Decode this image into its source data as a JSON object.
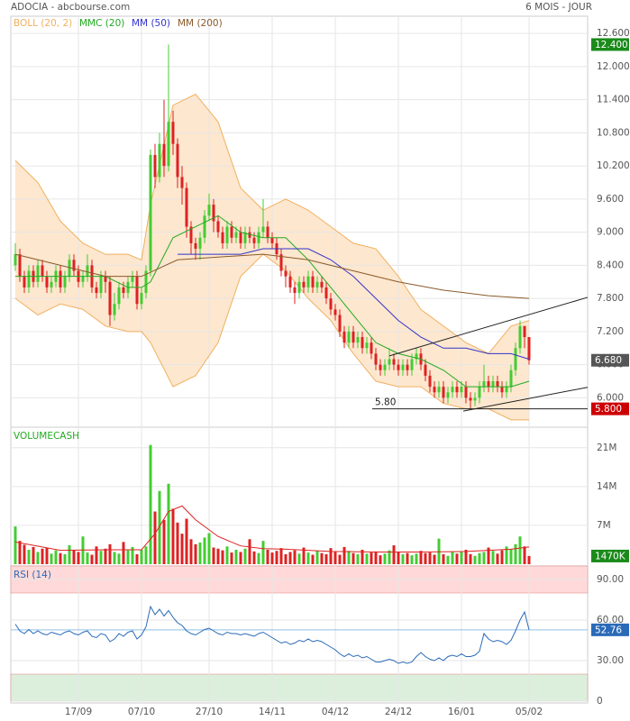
{
  "chart_data": [
    {
      "type": "candlestick",
      "title": "ADOCIA - abcbourse.com",
      "subtitle": "6 MOIS - JOUR",
      "ylim": [
        5.5,
        12.75
      ],
      "yticks": [
        {
          "value": 12.6,
          "label": "12.600"
        },
        {
          "value": 12.0,
          "label": "12.000"
        },
        {
          "value": 11.4,
          "label": "11.400"
        },
        {
          "value": 10.8,
          "label": "10.800"
        },
        {
          "value": 10.2,
          "label": "10.200"
        },
        {
          "value": 9.6,
          "label": "9.600"
        },
        {
          "value": 9.0,
          "label": "9.000"
        },
        {
          "value": 8.4,
          "label": "8.400"
        },
        {
          "value": 7.8,
          "label": "7.800"
        },
        {
          "value": 7.2,
          "label": "7.200"
        },
        {
          "value": 6.6,
          "label": "6.600"
        },
        {
          "value": 6.0,
          "label": "6.000"
        }
      ],
      "up_color": "#44cc33",
      "down_color": "#dd2222",
      "open": [
        8.4,
        8.6,
        8.2,
        8.0,
        8.3,
        8.1,
        8.4,
        8.2,
        8.0,
        8.1,
        8.3,
        8.0,
        8.2,
        8.5,
        8.3,
        8.1,
        8.2,
        8.4,
        8.0,
        7.9,
        8.2,
        8.1,
        7.5,
        7.7,
        8.0,
        7.9,
        8.1,
        8.2,
        7.7,
        7.9,
        8.3,
        10.4,
        10.0,
        10.6,
        10.2,
        11.0,
        10.6,
        10.0,
        9.8,
        9.1,
        8.8,
        8.7,
        8.9,
        9.3,
        9.5,
        9.2,
        9.0,
        8.8,
        9.1,
        8.9,
        9.0,
        8.8,
        9.0,
        8.9,
        8.8,
        9.0,
        9.1,
        8.9,
        8.8,
        8.6,
        8.3,
        8.2,
        8.0,
        7.9,
        8.1,
        8.0,
        8.2,
        8.0,
        8.1,
        8.0,
        7.8,
        7.6,
        7.5,
        7.2,
        7.0,
        7.2,
        7.0,
        7.1,
        6.9,
        7.0,
        6.8,
        6.6,
        6.5,
        6.6,
        6.7,
        6.6,
        6.5,
        6.6,
        6.5,
        6.7,
        6.8,
        6.6,
        6.4,
        6.2,
        6.1,
        6.2,
        6.0,
        6.1,
        6.2,
        6.1,
        6.2,
        6.0,
        5.95,
        6.0,
        6.2,
        6.3,
        6.2,
        6.3,
        6.2,
        6.1,
        6.2,
        6.5,
        6.9,
        7.3,
        7.1
      ],
      "high": [
        8.8,
        8.7,
        8.3,
        8.4,
        8.4,
        8.5,
        8.5,
        8.3,
        8.2,
        8.4,
        8.4,
        8.3,
        8.6,
        8.6,
        8.4,
        8.3,
        8.6,
        8.5,
        8.1,
        8.3,
        8.3,
        8.2,
        7.9,
        8.1,
        8.1,
        8.2,
        8.3,
        8.3,
        8.0,
        8.4,
        10.5,
        10.6,
        10.8,
        11.4,
        12.4,
        11.2,
        10.7,
        10.2,
        9.9,
        9.2,
        8.9,
        9.0,
        9.4,
        9.7,
        9.6,
        9.3,
        9.1,
        9.2,
        9.2,
        9.1,
        9.1,
        9.1,
        9.1,
        9.0,
        9.1,
        9.6,
        9.2,
        9.0,
        8.9,
        8.7,
        8.4,
        8.3,
        8.1,
        8.2,
        8.2,
        8.3,
        8.3,
        8.2,
        8.2,
        8.1,
        7.9,
        7.7,
        7.6,
        7.3,
        7.3,
        7.3,
        7.2,
        7.2,
        7.1,
        7.1,
        6.9,
        6.7,
        6.7,
        6.9,
        6.8,
        6.7,
        6.7,
        6.7,
        6.8,
        6.9,
        6.9,
        6.7,
        6.5,
        6.3,
        6.3,
        6.3,
        6.2,
        6.3,
        6.3,
        6.3,
        6.3,
        6.1,
        6.1,
        6.3,
        6.6,
        6.4,
        6.4,
        6.4,
        6.3,
        6.3,
        6.6,
        7.0,
        7.4,
        7.3,
        7.1
      ],
      "low": [
        8.3,
        8.1,
        7.9,
        7.9,
        8.0,
        8.0,
        8.1,
        7.9,
        7.9,
        8.0,
        7.9,
        7.9,
        8.1,
        8.2,
        8.0,
        8.0,
        8.1,
        7.9,
        7.8,
        7.8,
        7.9,
        7.3,
        7.4,
        7.6,
        7.8,
        7.8,
        8.0,
        7.6,
        7.6,
        7.8,
        8.2,
        9.8,
        9.9,
        10.0,
        10.1,
        10.4,
        9.8,
        9.5,
        8.9,
        8.6,
        8.5,
        8.5,
        8.8,
        9.2,
        9.0,
        8.9,
        8.7,
        8.7,
        8.8,
        8.8,
        8.7,
        8.7,
        8.8,
        8.7,
        8.7,
        8.9,
        8.8,
        8.7,
        8.5,
        8.2,
        8.0,
        7.9,
        7.7,
        7.8,
        7.9,
        7.9,
        7.9,
        7.9,
        7.9,
        7.7,
        7.5,
        7.4,
        7.1,
        6.9,
        6.9,
        6.9,
        6.9,
        6.8,
        6.8,
        6.7,
        6.5,
        6.4,
        6.4,
        6.5,
        6.5,
        6.4,
        6.4,
        6.4,
        6.4,
        6.6,
        6.5,
        6.3,
        6.1,
        6.0,
        6.0,
        5.9,
        5.9,
        6.0,
        6.0,
        6.0,
        5.9,
        5.8,
        5.85,
        5.9,
        6.1,
        6.1,
        6.1,
        6.1,
        6.0,
        6.0,
        6.1,
        6.4,
        6.8,
        6.9,
        6.6
      ],
      "close": [
        8.6,
        8.2,
        8.0,
        8.3,
        8.1,
        8.4,
        8.2,
        8.0,
        8.1,
        8.3,
        8.0,
        8.2,
        8.5,
        8.3,
        8.1,
        8.2,
        8.4,
        8.0,
        7.9,
        8.2,
        8.1,
        7.5,
        7.7,
        8.0,
        7.9,
        8.1,
        8.2,
        7.7,
        7.9,
        8.3,
        10.4,
        10.0,
        10.6,
        10.2,
        11.0,
        10.6,
        10.0,
        9.8,
        9.1,
        8.8,
        8.7,
        8.9,
        9.3,
        9.5,
        9.2,
        9.0,
        8.8,
        9.1,
        8.9,
        9.0,
        8.8,
        9.0,
        8.9,
        8.8,
        9.0,
        9.1,
        8.9,
        8.8,
        8.6,
        8.3,
        8.2,
        8.0,
        7.9,
        8.1,
        8.0,
        8.2,
        8.0,
        8.1,
        8.0,
        7.8,
        7.6,
        7.5,
        7.2,
        7.0,
        7.2,
        7.0,
        7.1,
        6.9,
        7.0,
        6.8,
        6.6,
        6.5,
        6.6,
        6.7,
        6.6,
        6.5,
        6.6,
        6.5,
        6.7,
        6.8,
        6.6,
        6.4,
        6.2,
        6.1,
        6.2,
        6.0,
        6.1,
        6.2,
        6.1,
        6.2,
        6.0,
        5.95,
        6.0,
        6.2,
        6.3,
        6.2,
        6.3,
        6.2,
        6.1,
        6.2,
        6.5,
        6.9,
        7.3,
        7.1,
        6.68
      ],
      "band": {
        "name": "BOLL (20, 2)",
        "color": "#f0b060",
        "fill": "#fde3c6",
        "x": [
          0,
          5,
          10,
          15,
          20,
          25,
          28,
          30,
          35,
          40,
          45,
          50,
          55,
          60,
          65,
          70,
          75,
          80,
          85,
          90,
          95,
          100,
          105,
          110,
          114
        ],
        "upper": [
          10.3,
          9.9,
          9.2,
          8.8,
          8.6,
          8.6,
          8.5,
          9.5,
          11.3,
          11.5,
          11.0,
          9.8,
          9.4,
          9.6,
          9.4,
          9.1,
          8.8,
          8.7,
          8.2,
          7.6,
          7.3,
          7.0,
          6.8,
          7.3,
          7.4
        ],
        "lower": [
          7.8,
          7.5,
          7.7,
          7.6,
          7.3,
          7.2,
          7.2,
          7.0,
          6.2,
          6.4,
          7.0,
          8.2,
          8.6,
          8.3,
          7.8,
          7.4,
          6.8,
          6.3,
          6.2,
          6.2,
          5.9,
          5.8,
          5.8,
          5.6,
          5.6
        ]
      },
      "series": [
        {
          "name": "MMC (20)",
          "color": "#22aa22",
          "x": [
            0,
            5,
            10,
            15,
            20,
            25,
            28,
            30,
            35,
            40,
            45,
            50,
            55,
            60,
            65,
            70,
            75,
            80,
            85,
            90,
            95,
            100,
            105,
            110,
            114
          ],
          "values": [
            8.2,
            8.2,
            8.2,
            8.2,
            8.2,
            8.0,
            8.0,
            8.1,
            8.9,
            9.1,
            9.3,
            9.0,
            8.9,
            8.9,
            8.5,
            8.0,
            7.5,
            7.0,
            6.8,
            6.7,
            6.5,
            6.2,
            6.2,
            6.2,
            6.3
          ]
        },
        {
          "name": "MM (50)",
          "color": "#3333cc",
          "x": [
            36,
            40,
            45,
            50,
            55,
            60,
            65,
            70,
            75,
            80,
            85,
            90,
            95,
            100,
            105,
            110,
            114
          ],
          "values": [
            8.6,
            8.6,
            8.6,
            8.6,
            8.7,
            8.7,
            8.7,
            8.5,
            8.2,
            7.8,
            7.4,
            7.1,
            6.9,
            6.9,
            6.8,
            6.8,
            6.7
          ]
        },
        {
          "name": "MM (200)",
          "color": "#8a5a2a",
          "x": [
            0,
            10,
            20,
            28,
            36,
            45,
            55,
            65,
            75,
            85,
            95,
            105,
            114
          ],
          "values": [
            8.6,
            8.4,
            8.2,
            8.2,
            8.5,
            8.55,
            8.6,
            8.5,
            8.3,
            8.1,
            7.95,
            7.85,
            7.8
          ]
        }
      ],
      "trendlines": [
        {
          "x": [
            83,
            127
          ],
          "values": [
            6.76,
            7.82
          ]
        },
        {
          "x": [
            99.4,
            127
          ],
          "values": [
            5.76,
            6.19
          ]
        }
      ],
      "hline": {
        "value": 5.8,
        "label": "5.80",
        "x_start": 79.2
      },
      "badges": [
        {
          "value": 12.4,
          "label": "12.400",
          "color": "#1a8a1a"
        },
        {
          "value": 6.68,
          "label": "6.680",
          "color": "#555555"
        },
        {
          "value": 5.8,
          "label": "5.800",
          "color": "#cc0000"
        }
      ]
    },
    {
      "type": "bar",
      "title": "VOLUMECASH",
      "ylim": [
        0,
        26000000
      ],
      "yticks": [
        {
          "value": 7000000,
          "label": "7M"
        },
        {
          "value": 14000000,
          "label": "14M"
        },
        {
          "value": 21000000,
          "label": "21M"
        }
      ],
      "values": [
        6800000,
        4200000,
        3500000,
        2600000,
        3100000,
        2200000,
        2800000,
        3000000,
        1900000,
        2500000,
        2000000,
        1800000,
        3400000,
        2600000,
        2200000,
        5000000,
        2100000,
        1700000,
        3200000,
        2400000,
        2800000,
        3600000,
        2200000,
        1900000,
        4000000,
        2500000,
        3100000,
        1800000,
        2600000,
        3200000,
        21500000,
        9500000,
        13200000,
        8000000,
        14500000,
        10000000,
        7500000,
        5500000,
        8200000,
        4500000,
        3600000,
        3900000,
        4800000,
        5600000,
        3000000,
        2800000,
        2500000,
        3200000,
        2100000,
        2600000,
        2200000,
        2800000,
        4500000,
        2300000,
        2000000,
        4200000,
        2600000,
        2100000,
        2400000,
        2900000,
        1800000,
        2200000,
        2500000,
        1900000,
        3000000,
        2100000,
        1700000,
        2400000,
        2000000,
        1800000,
        2900000,
        2200000,
        1700000,
        3100000,
        2400000,
        2000000,
        1800000,
        2600000,
        1900000,
        2100000,
        2300000,
        1600000,
        1900000,
        2500000,
        3400000,
        2200000,
        1800000,
        2000000,
        1600000,
        1900000,
        2400000,
        2000000,
        2100000,
        1700000,
        4600000,
        1800000,
        1500000,
        2200000,
        1900000,
        2300000,
        2600000,
        1800000,
        1500000,
        2000000,
        2200000,
        3000000,
        2400000,
        1900000,
        2500000,
        3200000,
        2700000,
        3600000,
        5000000,
        3200000,
        1470000
      ],
      "ma": {
        "color": "#dd2222",
        "x": [
          0,
          10,
          20,
          28,
          31,
          34,
          37,
          40,
          45,
          50,
          55,
          60,
          70,
          80,
          90,
          100,
          110,
          114
        ],
        "values": [
          4000000,
          2500000,
          2600000,
          2600000,
          5500000,
          9500000,
          10500000,
          8000000,
          5000000,
          3300000,
          2800000,
          2700000,
          2300000,
          2200000,
          2200000,
          2300000,
          2700000,
          3100000
        ]
      },
      "badge": {
        "value": 1470000,
        "label": "1470K",
        "color": "#1a8a1a"
      }
    },
    {
      "type": "line",
      "title": "RSI (14)",
      "ylim": [
        0,
        100
      ],
      "yticks": [
        0,
        {
          "value": 30,
          "label": "30.00"
        },
        {
          "value": 60,
          "label": "60.00"
        },
        {
          "value": 90,
          "label": "90.00"
        }
      ],
      "zones": [
        {
          "from": 80,
          "to": 100,
          "color": "#ffd9d9"
        },
        {
          "from": 0,
          "to": 20,
          "color": "#dcefdc"
        }
      ],
      "color": "#2a6ab8",
      "values": [
        57,
        52,
        50,
        53,
        50,
        52,
        50,
        49,
        51,
        50,
        49,
        51,
        52,
        50,
        49,
        51,
        52,
        48,
        47,
        50,
        49,
        44,
        46,
        50,
        48,
        51,
        52,
        46,
        49,
        55,
        70,
        64,
        68,
        63,
        67,
        62,
        58,
        56,
        52,
        50,
        49,
        51,
        53,
        54,
        52,
        50,
        49,
        51,
        50,
        50,
        49,
        50,
        49,
        48,
        50,
        51,
        49,
        47,
        45,
        43,
        44,
        42,
        43,
        45,
        44,
        46,
        44,
        45,
        44,
        42,
        40,
        38,
        35,
        33,
        35,
        33,
        34,
        32,
        33,
        31,
        29,
        29,
        30,
        31,
        30,
        28,
        29,
        28,
        29,
        33,
        36,
        33,
        31,
        30,
        32,
        30,
        33,
        34,
        33,
        35,
        33,
        33,
        34,
        37,
        50,
        46,
        44,
        45,
        44,
        42,
        45,
        52,
        60,
        66,
        52.76
      ],
      "badge": {
        "value": 52.76,
        "label": "52.76",
        "color": "#2a6ab8"
      },
      "xticks": [
        {
          "value": 14,
          "label": "17/09"
        },
        {
          "value": 28,
          "label": "07/10"
        },
        {
          "value": 43,
          "label": "27/10"
        },
        {
          "value": 57,
          "label": "14/11"
        },
        {
          "value": 71,
          "label": "04/12"
        },
        {
          "value": 85,
          "label": "24/12"
        },
        {
          "value": 99,
          "label": "16/01"
        },
        {
          "value": 114,
          "label": "05/02"
        }
      ]
    }
  ]
}
